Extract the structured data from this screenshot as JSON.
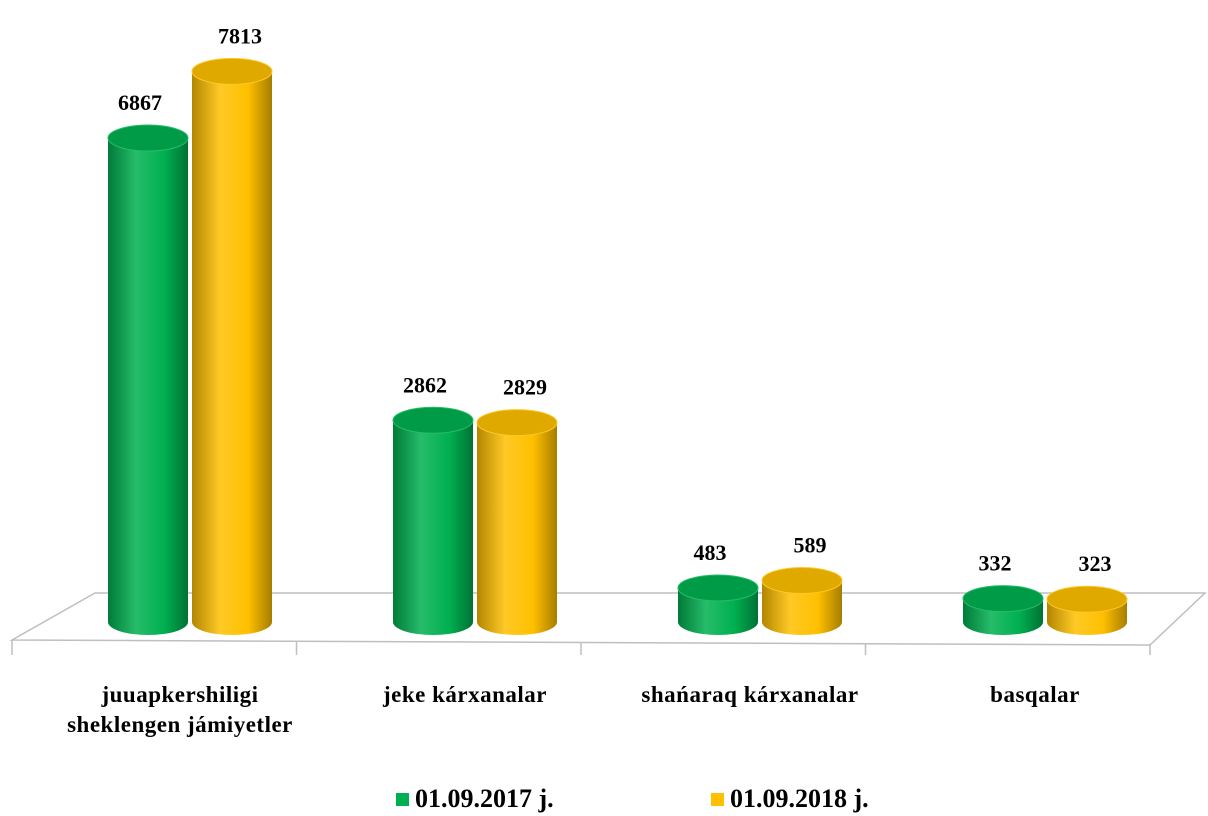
{
  "chart_data": {
    "type": "bar",
    "categories": [
      "juuapkershiligi sheklengen jámiyetler",
      "jeke kárxanalar",
      "shańaraq kárxanalar",
      "basqalar"
    ],
    "series": [
      {
        "name": "01.09.2017 j.",
        "color": "#00b050",
        "values": [
          6867,
          2862,
          483,
          332
        ]
      },
      {
        "name": "01.09.2018 j.",
        "color": "#ffc000",
        "values": [
          7813,
          2829,
          589,
          323
        ]
      }
    ]
  }
}
